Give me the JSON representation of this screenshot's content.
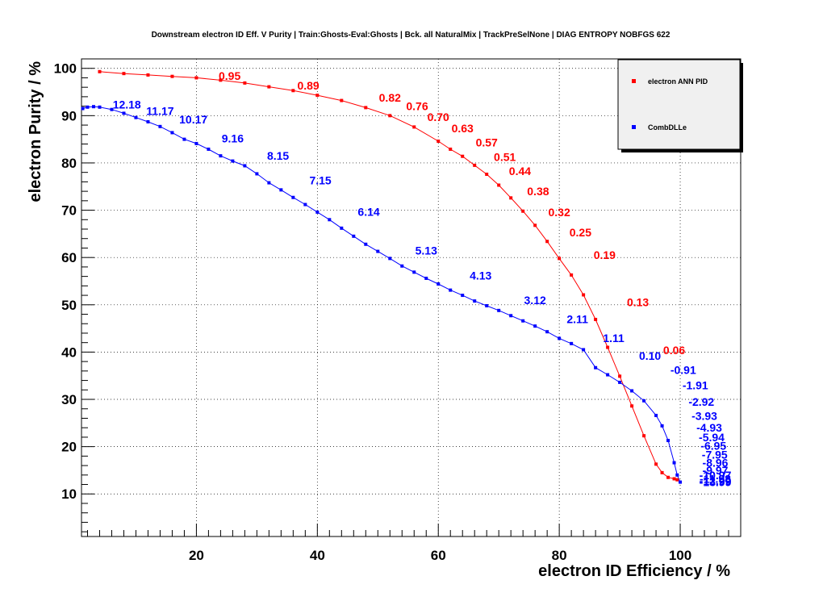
{
  "chart_data": {
    "type": "line",
    "title": "Downstream electron ID Eff. V Purity | Train:Ghosts-Eval:Ghosts | Bck. all NaturalMix | TrackPreSelNone | DIAG ENTROPY NOBFGS 622",
    "xlabel": "electron ID Efficiency / %",
    "ylabel": "electron Purity / %",
    "xlim": [
      1,
      110
    ],
    "ylim": [
      1,
      102
    ],
    "x_ticks": [
      20,
      40,
      60,
      80,
      100
    ],
    "y_ticks": [
      10,
      20,
      30,
      40,
      50,
      60,
      70,
      80,
      90,
      100
    ],
    "grid": true,
    "legend_position": "top-right",
    "series": [
      {
        "name": "electron ANN PID",
        "color": "#ff0000",
        "x": [
          4,
          8,
          12,
          16,
          20,
          24,
          28,
          32,
          36,
          40,
          44,
          48,
          52,
          56,
          60,
          62,
          64,
          66,
          68,
          70,
          72,
          74,
          76,
          78,
          80,
          82,
          84,
          86,
          88,
          90,
          92,
          94,
          96,
          97,
          98,
          99,
          99.5
        ],
        "y": [
          99.3,
          98.9,
          98.6,
          98.3,
          98.0,
          97.5,
          96.9,
          96.1,
          95.3,
          94.3,
          93.2,
          91.7,
          90.0,
          87.6,
          84.6,
          82.9,
          81.4,
          79.5,
          77.6,
          75.3,
          72.6,
          69.8,
          66.8,
          63.4,
          59.8,
          56.3,
          52.1,
          46.9,
          41.0,
          34.9,
          28.6,
          22.3,
          16.3,
          14.5,
          13.5,
          13.2,
          13.0
        ],
        "labels": [
          {
            "x": 25.5,
            "y": 98.4,
            "text": "0.95"
          },
          {
            "x": 38.5,
            "y": 96.4,
            "text": "0.89"
          },
          {
            "x": 52,
            "y": 93.8,
            "text": "0.82"
          },
          {
            "x": 56.5,
            "y": 92.0,
            "text": "0.76"
          },
          {
            "x": 60,
            "y": 89.7,
            "text": "0.70"
          },
          {
            "x": 64,
            "y": 87.3,
            "text": "0.63"
          },
          {
            "x": 68,
            "y": 84.3,
            "text": "0.57"
          },
          {
            "x": 71,
            "y": 81.3,
            "text": "0.51"
          },
          {
            "x": 73.5,
            "y": 78.3,
            "text": "0.44"
          },
          {
            "x": 76.5,
            "y": 74.0,
            "text": "0.38"
          },
          {
            "x": 80,
            "y": 69.6,
            "text": "0.32"
          },
          {
            "x": 83.5,
            "y": 65.3,
            "text": "0.25"
          },
          {
            "x": 87.5,
            "y": 60.5,
            "text": "0.19"
          },
          {
            "x": 93,
            "y": 50.6,
            "text": "0.13"
          },
          {
            "x": 99,
            "y": 40.4,
            "text": "0.06"
          }
        ]
      },
      {
        "name": "CombDLLe",
        "color": "#0000ff",
        "x": [
          1.2,
          2,
          3,
          4,
          6,
          8,
          10,
          12,
          14,
          16,
          18,
          20,
          22,
          24,
          26,
          28,
          30,
          32,
          34,
          36,
          38,
          40,
          42,
          44,
          46,
          48,
          50,
          52,
          54,
          56,
          58,
          60,
          62,
          64,
          66,
          68,
          70,
          72,
          74,
          76,
          78,
          80,
          82,
          84,
          86,
          88,
          90,
          92,
          94,
          96,
          97,
          98,
          99,
          99.5,
          100
        ],
        "y": [
          91.5,
          91.8,
          91.9,
          91.8,
          91.3,
          90.5,
          89.6,
          88.7,
          87.7,
          86.4,
          85.0,
          84.1,
          82.9,
          81.5,
          80.4,
          79.4,
          77.7,
          75.8,
          74.3,
          72.7,
          71.2,
          69.6,
          68.0,
          66.2,
          64.5,
          62.8,
          61.3,
          59.8,
          58.2,
          56.9,
          55.6,
          54.4,
          53.1,
          52.0,
          50.8,
          49.8,
          48.8,
          47.7,
          46.6,
          45.5,
          44.3,
          42.9,
          41.8,
          40.5,
          36.7,
          35.2,
          33.6,
          31.8,
          29.7,
          26.6,
          24.4,
          21.3,
          16.6,
          14.0,
          12.5
        ],
        "labels": [
          {
            "x": 8.5,
            "y": 92.4,
            "text": "12.18"
          },
          {
            "x": 14,
            "y": 91.0,
            "text": "11.17"
          },
          {
            "x": 19.5,
            "y": 89.2,
            "text": "10.17"
          },
          {
            "x": 26,
            "y": 85.2,
            "text": "9.16"
          },
          {
            "x": 33.5,
            "y": 81.5,
            "text": "8.15"
          },
          {
            "x": 40.5,
            "y": 76.3,
            "text": "7.15"
          },
          {
            "x": 48.5,
            "y": 69.7,
            "text": "6.14"
          },
          {
            "x": 58,
            "y": 61.5,
            "text": "5.13"
          },
          {
            "x": 67,
            "y": 56.2,
            "text": "4.13"
          },
          {
            "x": 76,
            "y": 51.0,
            "text": "3.12"
          },
          {
            "x": 83,
            "y": 47.0,
            "text": "2.11"
          },
          {
            "x": 89,
            "y": 43.0,
            "text": "1.11"
          },
          {
            "x": 95,
            "y": 39.2,
            "text": "0.10"
          },
          {
            "x": 100.5,
            "y": 36.2,
            "text": "-0.91"
          },
          {
            "x": 102.5,
            "y": 33.0,
            "text": "-1.91"
          },
          {
            "x": 103.5,
            "y": 29.5,
            "text": "-2.92"
          },
          {
            "x": 104,
            "y": 26.5,
            "text": "-3.93"
          },
          {
            "x": 104.8,
            "y": 24.0,
            "text": "-4.93"
          },
          {
            "x": 105.2,
            "y": 22.0,
            "text": "-5.94"
          },
          {
            "x": 105.5,
            "y": 20.2,
            "text": "-6.95"
          },
          {
            "x": 105.7,
            "y": 18.3,
            "text": "-7.95"
          },
          {
            "x": 105.8,
            "y": 16.6,
            "text": "-8.96"
          },
          {
            "x": 105.8,
            "y": 15.0,
            "text": "-9.97"
          },
          {
            "x": 105.8,
            "y": 14.0,
            "text": "-10.97"
          },
          {
            "x": 105.8,
            "y": 13.2,
            "text": "-11.98"
          },
          {
            "x": 105.8,
            "y": 12.8,
            "text": "-12.99"
          },
          {
            "x": 105.8,
            "y": 12.5,
            "text": "-13.99"
          }
        ]
      }
    ]
  }
}
